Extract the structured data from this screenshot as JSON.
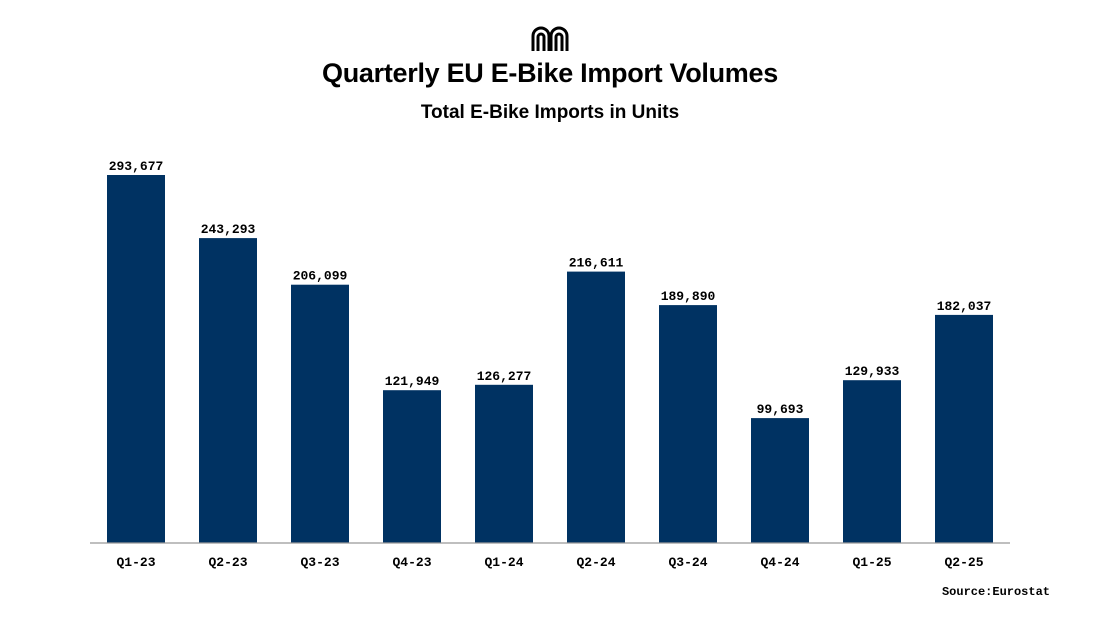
{
  "header": {
    "title": "Quarterly EU E-Bike Import Volumes",
    "subtitle": "Total E-Bike Imports in Units",
    "logo_icon": "arch-logo-icon"
  },
  "footer": {
    "source": "Source:Eurostat"
  },
  "colors": {
    "bar": "#003262",
    "text": "#000000",
    "axis": "#999999"
  },
  "chart_data": {
    "type": "bar",
    "title": "Quarterly EU E-Bike Import Volumes",
    "subtitle": "Total E-Bike Imports in Units",
    "xlabel": "",
    "ylabel": "",
    "categories": [
      "Q1-23",
      "Q2-23",
      "Q3-23",
      "Q4-23",
      "Q1-24",
      "Q2-24",
      "Q3-24",
      "Q4-24",
      "Q1-25",
      "Q2-25"
    ],
    "values": [
      293677,
      243293,
      206099,
      121949,
      126277,
      216611,
      189890,
      99693,
      129933,
      182037
    ],
    "data_labels": [
      "293,677",
      "243,293",
      "206,099",
      "121,949",
      "126,277",
      "216,611",
      "189,890",
      "99,693",
      "129,933",
      "182,037"
    ],
    "ylim": [
      0,
      293677
    ],
    "grid": false,
    "legend": "none"
  }
}
